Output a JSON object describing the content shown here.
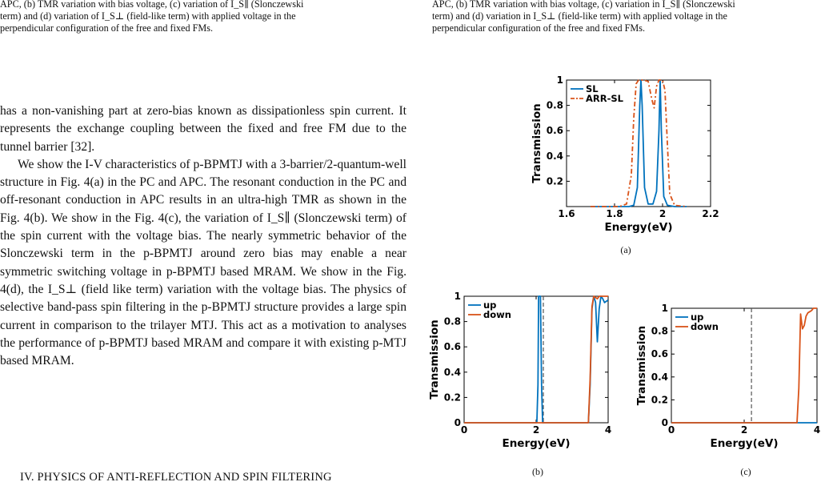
{
  "left_caption": {
    "lines": [
      "APC, (b) TMR variation with bias voltage, (c) variation of I_S∥ (Slonczewski",
      "term) and (d) variation of I_S⊥ (field-like term) with applied voltage in the",
      "perpendicular configuration of the free and fixed FMs."
    ]
  },
  "right_caption": {
    "lines": [
      "APC, (b) TMR variation with bias voltage, (c) variation in I_S∥ (Slonczewski",
      "term) and (d) variation in I_S⊥ (field-like term) with applied voltage in the",
      "perpendicular configuration of the free and fixed FMs."
    ]
  },
  "body": {
    "paragraph1": "has a non-vanishing part at zero-bias known as dissipationless spin current. It represents the exchange coupling between the fixed and free FM due to the tunnel barrier [32].",
    "paragraph2": "We show the I-V characteristics of p-BPMTJ with a 3-barrier/2-quantum-well structure in Fig. 4(a) in the PC and APC. The resonant conduction in the PC and off-resonant conduction in APC results in an ultra-high TMR as shown in the Fig. 4(b). We show in the Fig. 4(c), the variation of I_S∥ (Slonczewski term) of the spin current with the voltage bias. The nearly symmetric behavior of the Slonczewski term in the p-BPMTJ around zero bias may enable a near symmetric switching voltage in p-BPMTJ based MRAM. We show in the Fig. 4(d), the I_S⊥ (field like term) variation with the voltage bias. The physics of selective band-pass spin filtering in the p-BPMTJ structure provides a large spin current in comparison to the trilayer MTJ. This act as a motivation to analyses the performance of p-BPMTJ based MRAM and compare it with existing p-MTJ based MRAM."
  },
  "section_heading": "IV. PHYSICS OF ANTI-REFLECTION AND SPIN FILTERING",
  "colors": {
    "blue": "#0072BD",
    "orange": "#D95319",
    "gray": "#555555"
  },
  "figures": [
    {
      "label": "(a)",
      "chart_data": {
        "type": "line",
        "xlabel": "Energy(eV)",
        "ylabel": "Transmission",
        "xlim": [
          1.6,
          2.2
        ],
        "ylim": [
          0,
          1
        ],
        "xticks": [
          "1.6",
          "1.8",
          "2",
          "2.2"
        ],
        "yticks": [
          "0.2",
          "0.4",
          "0.6",
          "0.8",
          "1"
        ],
        "legend_position": "top-left",
        "series": [
          {
            "name": "SL",
            "style": "solid",
            "x": [
              1.7,
              1.86,
              1.88,
              1.895,
              1.905,
              1.91,
              1.915,
              1.925,
              1.94,
              1.96,
              1.975,
              1.985,
              1.99,
              1.995,
              2.005,
              2.02,
              2.05,
              2.1
            ],
            "y": [
              0,
              0,
              0.01,
              0.15,
              0.8,
              1,
              0.8,
              0.15,
              0.02,
              0.02,
              0.12,
              0.6,
              1,
              0.6,
              0.08,
              0.01,
              0,
              0
            ]
          },
          {
            "name": "ARR-SL",
            "style": "dashed",
            "x": [
              1.7,
              1.82,
              1.85,
              1.87,
              1.88,
              1.89,
              1.9,
              1.92,
              1.94,
              1.955,
              1.965,
              1.975,
              1.985,
              2.0,
              2.01,
              2.02,
              2.03,
              2.05,
              2.1
            ],
            "y": [
              0,
              0,
              0.02,
              0.25,
              0.7,
              0.97,
              1,
              1,
              0.99,
              0.85,
              0.78,
              0.95,
              1,
              1,
              0.92,
              0.5,
              0.1,
              0.01,
              0
            ]
          }
        ]
      }
    },
    {
      "label": "(b)",
      "chart_data": {
        "type": "line",
        "xlabel": "Energy(eV)",
        "ylabel": "Transmission",
        "xlim": [
          0,
          4
        ],
        "ylim": [
          0,
          1
        ],
        "xticks": [
          "0",
          "2",
          "4"
        ],
        "yticks": [
          "0",
          "0.2",
          "0.4",
          "0.6",
          "0.8",
          "1"
        ],
        "legend_position": "top-left",
        "vline_x": 2.2,
        "series": [
          {
            "name": "up",
            "style": "solid",
            "x": [
              0,
              2.02,
              2.05,
              2.07,
              2.1,
              2.12,
              2.15,
              2.18,
              3.45,
              3.5,
              3.55,
              3.6,
              3.65,
              3.7,
              3.75,
              3.8,
              3.85,
              3.9,
              3.95,
              4.0
            ],
            "y": [
              0,
              0,
              0.3,
              1,
              1,
              1,
              0.3,
              0,
              0,
              0.3,
              0.9,
              1.0,
              0.95,
              0.64,
              0.9,
              1.0,
              0.98,
              0.95,
              0.96,
              0.97
            ]
          },
          {
            "name": "down",
            "style": "solid",
            "x": [
              0,
              3.45,
              3.5,
              3.55,
              3.6,
              3.65,
              3.7,
              3.75,
              3.8,
              3.9,
              4.0
            ],
            "y": [
              0,
              0,
              0.35,
              0.92,
              1.0,
              0.99,
              0.98,
              1.0,
              1.0,
              1.0,
              1.0
            ]
          }
        ]
      }
    },
    {
      "label": "(c)",
      "chart_data": {
        "type": "line",
        "xlabel": "Energy(eV)",
        "ylabel": "Transmission",
        "xlim": [
          0,
          4
        ],
        "ylim": [
          0,
          1
        ],
        "xticks": [
          "0",
          "2",
          "4"
        ],
        "yticks": [
          "0",
          "0.2",
          "0.4",
          "0.6",
          "0.8",
          "1"
        ],
        "legend_position": "top-left",
        "vline_x": 2.2,
        "series": [
          {
            "name": "up",
            "style": "solid",
            "x": [
              0,
              4
            ],
            "y": [
              0,
              0
            ]
          },
          {
            "name": "down",
            "style": "solid",
            "x": [
              0,
              3.45,
              3.5,
              3.55,
              3.6,
              3.65,
              3.7,
              3.75,
              3.8,
              3.85,
              3.9,
              3.95,
              4.0
            ],
            "y": [
              0,
              0,
              0.3,
              0.95,
              0.82,
              0.85,
              0.93,
              0.96,
              0.97,
              0.98,
              1.0,
              1.0,
              1.0
            ]
          }
        ]
      }
    }
  ]
}
